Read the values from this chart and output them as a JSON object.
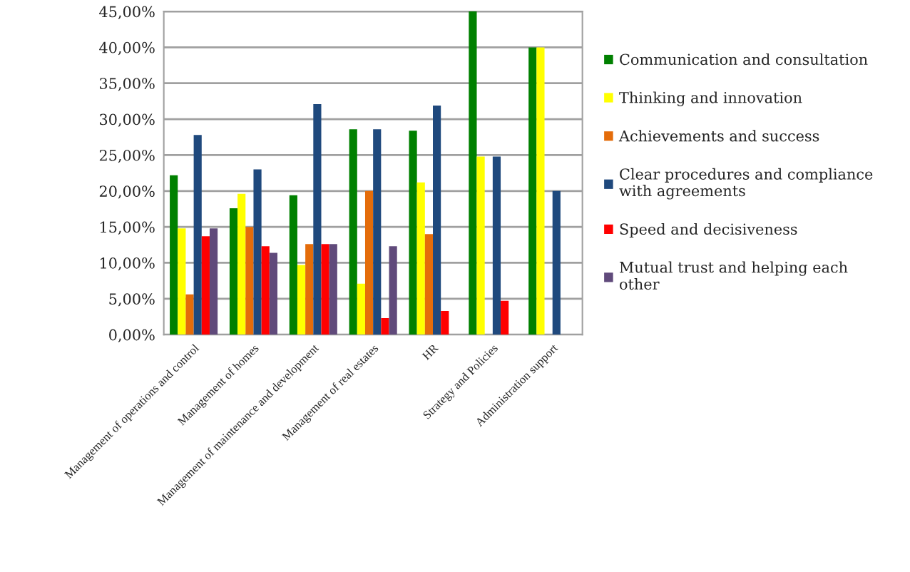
{
  "chart_data": {
    "type": "bar",
    "categories": [
      "Management of operations and control",
      "Management of homes",
      "Management of maintenance and development",
      "Management of real estates",
      "HR",
      "Strategy and Policies",
      "Administration support"
    ],
    "series": [
      {
        "name": "Communication and consultation",
        "color": "#008000",
        "values": [
          22.2,
          17.6,
          19.4,
          28.6,
          28.4,
          45.0,
          40.0
        ]
      },
      {
        "name": "Thinking and innovation",
        "color": "#ffff00",
        "values": [
          14.8,
          19.6,
          9.7,
          7.1,
          21.2,
          24.8,
          40.0
        ]
      },
      {
        "name": "Achievements and success",
        "color": "#e46c0a",
        "values": [
          5.6,
          15.0,
          12.6,
          20.0,
          14.0,
          0,
          0
        ]
      },
      {
        "name": "Clear procedures and compliance with agreements",
        "color": "#1f497d",
        "values": [
          27.8,
          23.0,
          32.1,
          28.6,
          31.9,
          24.8,
          20.0
        ]
      },
      {
        "name": "Speed and decisiveness",
        "color": "#ff0000",
        "values": [
          13.7,
          12.3,
          12.6,
          2.3,
          3.3,
          4.7,
          0
        ]
      },
      {
        "name": "Mutual trust and helping each other",
        "color": "#604a7b",
        "values": [
          14.8,
          11.4,
          12.6,
          12.3,
          0,
          0,
          0
        ]
      }
    ],
    "ylim": [
      0,
      45
    ],
    "yticks": [
      {
        "value": 0,
        "label": "0,00%"
      },
      {
        "value": 5,
        "label": "5,00%"
      },
      {
        "value": 10,
        "label": "10,00%"
      },
      {
        "value": 15,
        "label": "15,00%"
      },
      {
        "value": 20,
        "label": "20,00%"
      },
      {
        "value": 25,
        "label": "25,00%"
      },
      {
        "value": 30,
        "label": "30,00%"
      },
      {
        "value": 35,
        "label": "35,00%"
      },
      {
        "value": 40,
        "label": "40,00%"
      },
      {
        "value": 45,
        "label": "45,00%"
      }
    ],
    "grid": "y",
    "legend": "right"
  }
}
